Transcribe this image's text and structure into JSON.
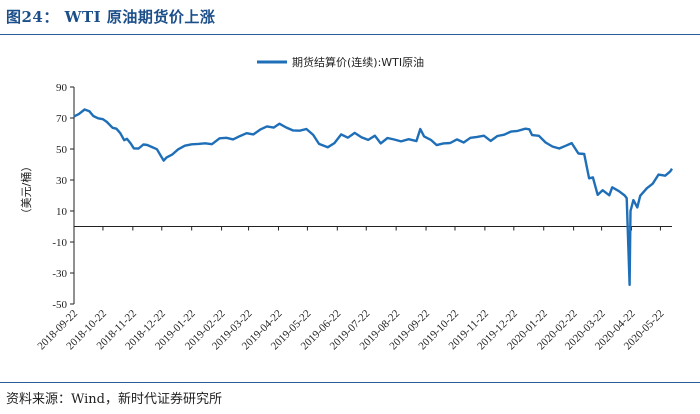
{
  "figure": {
    "title": "图24：  WTI 原油期货价上涨",
    "source": "资料来源：Wind，新时代证券研究所"
  },
  "chart_data": {
    "type": "line",
    "ylabel": "（美元/桶）",
    "ylim": [
      -50,
      90
    ],
    "yticks": [
      -50,
      -30,
      -10,
      10,
      30,
      50,
      70,
      90
    ],
    "xlabels": [
      "2018-09-22",
      "2018-10-22",
      "2018-11-22",
      "2018-12-22",
      "2019-01-22",
      "2019-02-22",
      "2019-03-22",
      "2019-04-22",
      "2019-05-22",
      "2019-06-22",
      "2019-07-22",
      "2019-08-22",
      "2019-09-22",
      "2019-10-22",
      "2019-11-22",
      "2019-12-22",
      "2020-01-22",
      "2020-02-22",
      "2020-03-22",
      "2020-04-22",
      "2020-05-22"
    ],
    "legend_position": "top-right",
    "grid": false,
    "series": [
      {
        "name": "期货结算价(连续):WTI原油",
        "color": "#1f6fb8",
        "points": [
          [
            "2018-09-22",
            71.0
          ],
          [
            "2018-09-27",
            72.5
          ],
          [
            "2018-10-03",
            75.5
          ],
          [
            "2018-10-08",
            74.3
          ],
          [
            "2018-10-12",
            71.3
          ],
          [
            "2018-10-17",
            69.8
          ],
          [
            "2018-10-22",
            69.2
          ],
          [
            "2018-10-26",
            67.5
          ],
          [
            "2018-11-01",
            63.7
          ],
          [
            "2018-11-05",
            63.1
          ],
          [
            "2018-11-09",
            60.2
          ],
          [
            "2018-11-13",
            55.7
          ],
          [
            "2018-11-16",
            56.5
          ],
          [
            "2018-11-20",
            53.4
          ],
          [
            "2018-11-23",
            50.4
          ],
          [
            "2018-11-28",
            50.3
          ],
          [
            "2018-12-03",
            52.9
          ],
          [
            "2018-12-07",
            52.6
          ],
          [
            "2018-12-12",
            51.2
          ],
          [
            "2018-12-17",
            49.9
          ],
          [
            "2018-12-21",
            45.6
          ],
          [
            "2018-12-24",
            42.5
          ],
          [
            "2018-12-27",
            44.6
          ],
          [
            "2019-01-02",
            46.5
          ],
          [
            "2019-01-08",
            49.8
          ],
          [
            "2019-01-15",
            52.1
          ],
          [
            "2019-01-22",
            53.0
          ],
          [
            "2019-01-29",
            53.3
          ],
          [
            "2019-02-05",
            53.7
          ],
          [
            "2019-02-12",
            53.1
          ],
          [
            "2019-02-20",
            56.9
          ],
          [
            "2019-02-27",
            57.2
          ],
          [
            "2019-03-06",
            56.2
          ],
          [
            "2019-03-13",
            58.3
          ],
          [
            "2019-03-20",
            60.2
          ],
          [
            "2019-03-27",
            59.4
          ],
          [
            "2019-04-03",
            62.5
          ],
          [
            "2019-04-10",
            64.6
          ],
          [
            "2019-04-17",
            63.8
          ],
          [
            "2019-04-23",
            66.3
          ],
          [
            "2019-04-30",
            63.9
          ],
          [
            "2019-05-07",
            62.0
          ],
          [
            "2019-05-14",
            61.8
          ],
          [
            "2019-05-21",
            62.9
          ],
          [
            "2019-05-28",
            59.1
          ],
          [
            "2019-06-03",
            53.3
          ],
          [
            "2019-06-12",
            51.1
          ],
          [
            "2019-06-19",
            53.8
          ],
          [
            "2019-06-26",
            59.4
          ],
          [
            "2019-07-03",
            57.3
          ],
          [
            "2019-07-10",
            60.4
          ],
          [
            "2019-07-17",
            57.6
          ],
          [
            "2019-07-24",
            55.9
          ],
          [
            "2019-07-31",
            58.6
          ],
          [
            "2019-08-06",
            53.6
          ],
          [
            "2019-08-13",
            57.1
          ],
          [
            "2019-08-20",
            56.1
          ],
          [
            "2019-08-27",
            54.9
          ],
          [
            "2019-09-04",
            56.3
          ],
          [
            "2019-09-12",
            55.1
          ],
          [
            "2019-09-16",
            62.9
          ],
          [
            "2019-09-20",
            58.1
          ],
          [
            "2019-09-27",
            55.9
          ],
          [
            "2019-10-03",
            52.5
          ],
          [
            "2019-10-10",
            53.6
          ],
          [
            "2019-10-17",
            53.9
          ],
          [
            "2019-10-24",
            56.2
          ],
          [
            "2019-10-31",
            54.2
          ],
          [
            "2019-11-07",
            57.2
          ],
          [
            "2019-11-14",
            57.8
          ],
          [
            "2019-11-21",
            58.6
          ],
          [
            "2019-11-28",
            55.2
          ],
          [
            "2019-12-05",
            58.4
          ],
          [
            "2019-12-12",
            59.2
          ],
          [
            "2019-12-19",
            61.2
          ],
          [
            "2019-12-26",
            61.7
          ],
          [
            "2020-01-03",
            63.1
          ],
          [
            "2020-01-07",
            62.7
          ],
          [
            "2020-01-10",
            59.0
          ],
          [
            "2020-01-17",
            58.5
          ],
          [
            "2020-01-24",
            54.2
          ],
          [
            "2020-01-31",
            51.6
          ],
          [
            "2020-02-07",
            50.3
          ],
          [
            "2020-02-14",
            52.1
          ],
          [
            "2020-02-20",
            53.8
          ],
          [
            "2020-02-27",
            47.1
          ],
          [
            "2020-03-04",
            46.8
          ],
          [
            "2020-03-09",
            31.1
          ],
          [
            "2020-03-13",
            31.7
          ],
          [
            "2020-03-18",
            20.4
          ],
          [
            "2020-03-23",
            23.4
          ],
          [
            "2020-03-30",
            20.1
          ],
          [
            "2020-04-02",
            25.3
          ],
          [
            "2020-04-09",
            22.8
          ],
          [
            "2020-04-15",
            20.0
          ],
          [
            "2020-04-17",
            18.3
          ],
          [
            "2020-04-20",
            -37.6
          ],
          [
            "2020-04-21",
            10.0
          ],
          [
            "2020-04-24",
            17.0
          ],
          [
            "2020-04-28",
            12.3
          ],
          [
            "2020-05-01",
            19.8
          ],
          [
            "2020-05-08",
            24.7
          ],
          [
            "2020-05-14",
            27.6
          ],
          [
            "2020-05-20",
            33.5
          ],
          [
            "2020-05-27",
            32.8
          ],
          [
            "2020-06-01",
            35.4
          ],
          [
            "2020-06-03",
            37.3
          ]
        ]
      }
    ]
  }
}
